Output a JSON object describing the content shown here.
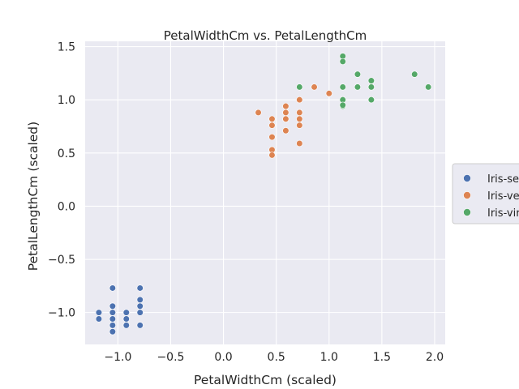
{
  "chart_data": {
    "type": "scatter",
    "title": "PetalWidthCm vs. PetalLengthCm",
    "xlabel": "PetalWidthCm (scaled)",
    "ylabel": "PetalLengthCm (scaled)",
    "xlim": [
      -1.31,
      2.1
    ],
    "ylim": [
      -1.3,
      1.55
    ],
    "xticks": [
      -1.0,
      -0.5,
      0.0,
      0.5,
      1.0,
      1.5,
      2.0
    ],
    "xtick_labels": [
      "−1.0",
      "−0.5",
      "0.0",
      "0.5",
      "1.0",
      "1.5",
      "2.0"
    ],
    "yticks": [
      -1.0,
      -0.5,
      0.0,
      0.5,
      1.0,
      1.5
    ],
    "ytick_labels": [
      "−1.0",
      "−0.5",
      "0.0",
      "0.5",
      "1.0",
      "1.5"
    ],
    "grid": true,
    "legend_position": "right (outside, clipped)",
    "series": [
      {
        "name": "Iris-setosa",
        "legend_label": "Iris-se",
        "color": "#4c72b0",
        "x": [
          -1.05,
          -1.05,
          -1.05,
          -1.05,
          -1.05,
          -1.05,
          -1.05,
          -1.18,
          -1.18,
          -0.92,
          -0.92,
          -0.92,
          -0.92,
          -0.79,
          -0.79,
          -0.79,
          -0.79,
          -0.79
        ],
        "y": [
          -0.77,
          -0.94,
          -1.0,
          -1.06,
          -1.12,
          -1.18,
          -1.0,
          -1.0,
          -1.06,
          -1.0,
          -1.06,
          -1.12,
          -1.06,
          -0.77,
          -0.88,
          -0.94,
          -1.0,
          -1.12
        ]
      },
      {
        "name": "Iris-versicolor",
        "legend_label": "Iris-ve",
        "color": "#dd8452",
        "x": [
          0.33,
          0.46,
          0.46,
          0.46,
          0.46,
          0.46,
          0.59,
          0.59,
          0.59,
          0.59,
          0.59,
          0.72,
          0.72,
          0.72,
          0.72,
          0.72,
          0.86,
          1.0
        ],
        "y": [
          0.88,
          0.82,
          0.76,
          0.65,
          0.53,
          0.48,
          0.94,
          0.88,
          0.82,
          0.71,
          0.82,
          1.0,
          0.88,
          0.82,
          0.76,
          0.59,
          1.12,
          1.06
        ]
      },
      {
        "name": "Iris-virginica",
        "legend_label": "Iris-vir",
        "color": "#55a868",
        "x": [
          0.72,
          1.13,
          1.13,
          1.13,
          1.13,
          1.13,
          1.27,
          1.27,
          1.4,
          1.4,
          1.4,
          1.81,
          1.94,
          1.13
        ],
        "y": [
          1.12,
          1.41,
          1.36,
          1.12,
          1.0,
          0.94,
          1.24,
          1.12,
          1.18,
          1.12,
          1.0,
          1.24,
          1.12,
          0.95
        ]
      }
    ]
  }
}
